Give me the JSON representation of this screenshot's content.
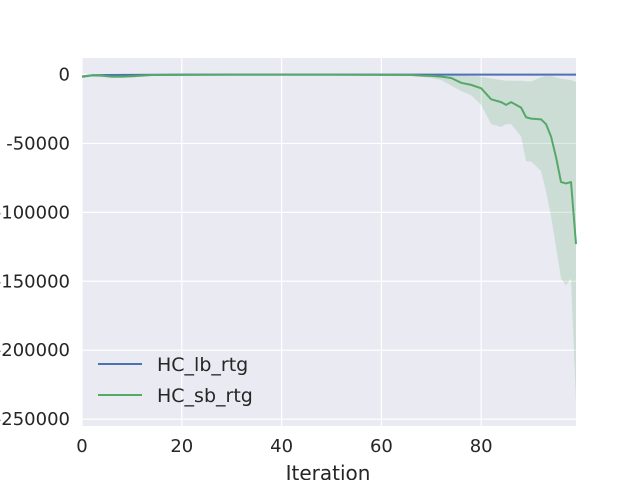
{
  "chart_data": {
    "type": "line",
    "title": "",
    "xlabel": "Iteration",
    "ylabel": "",
    "xlim": [
      0,
      99
    ],
    "ylim": [
      -255000,
      12000
    ],
    "xticks": [
      0,
      20,
      40,
      60,
      80
    ],
    "yticks": [
      0,
      -50000,
      -100000,
      -150000,
      -200000,
      -250000
    ],
    "ytick_labels": [
      "0",
      "-50000",
      "-100000",
      "-150000",
      "-200000",
      "-250000"
    ],
    "grid": true,
    "legend_position": "lower-left",
    "colors": {
      "background": "#eaeaf2",
      "grid": "#ffffff",
      "HC_lb_rtg": "#4c72b0",
      "HC_sb_rtg": "#55a868"
    },
    "series": [
      {
        "name": "HC_lb_rtg",
        "x": [
          0,
          2,
          5,
          10,
          20,
          40,
          60,
          70,
          80,
          90,
          95,
          99
        ],
        "values": [
          -1500,
          -500,
          -300,
          -200,
          -100,
          -80,
          -60,
          -50,
          -40,
          -30,
          -20,
          -20
        ],
        "band_low": [
          -2500,
          -1500,
          -1000,
          -800,
          -500,
          -400,
          -300,
          -300,
          -300,
          -300,
          -300,
          -300
        ],
        "band_high": [
          -500,
          0,
          300,
          300,
          300,
          300,
          300,
          300,
          300,
          300,
          300,
          300
        ]
      },
      {
        "name": "HC_sb_rtg",
        "x": [
          0,
          2,
          4,
          6,
          8,
          10,
          12,
          14,
          20,
          30,
          40,
          50,
          60,
          66,
          68,
          70,
          72,
          74,
          76,
          78,
          80,
          82,
          84,
          85,
          86,
          88,
          89,
          90,
          92,
          93,
          94,
          95,
          96,
          97,
          98,
          99
        ],
        "values": [
          -1500,
          -500,
          -800,
          -1500,
          -1500,
          -1200,
          -800,
          -300,
          -200,
          -100,
          -100,
          -100,
          -200,
          -300,
          -800,
          -1000,
          -1500,
          -2500,
          -6000,
          -7500,
          -10000,
          -18000,
          -20000,
          -22000,
          -20000,
          -24000,
          -31000,
          -32000,
          -32500,
          -36000,
          -45000,
          -60000,
          -78000,
          -79000,
          -78000,
          -123000
        ],
        "band_low": [
          -2500,
          -1500,
          -2000,
          -2500,
          -2500,
          -2200,
          -1500,
          -800,
          -500,
          -300,
          -300,
          -300,
          -500,
          -800,
          -1500,
          -2500,
          -4000,
          -8000,
          -12000,
          -15000,
          -22000,
          -36000,
          -38000,
          -36000,
          -36000,
          -45000,
          -63000,
          -63000,
          -70000,
          -85000,
          -103000,
          -125000,
          -148000,
          -153000,
          -148000,
          -238000
        ],
        "band_high": [
          -500,
          0,
          0,
          -500,
          -500,
          -300,
          0,
          0,
          0,
          0,
          0,
          0,
          0,
          0,
          0,
          0,
          0,
          0,
          -500,
          -1000,
          -1500,
          -3000,
          -4000,
          -4500,
          -4500,
          -4500,
          -5000,
          -5000,
          -2000,
          -1000,
          -1000,
          -2000,
          -3000,
          -3500,
          -4000,
          -5500
        ]
      }
    ]
  }
}
